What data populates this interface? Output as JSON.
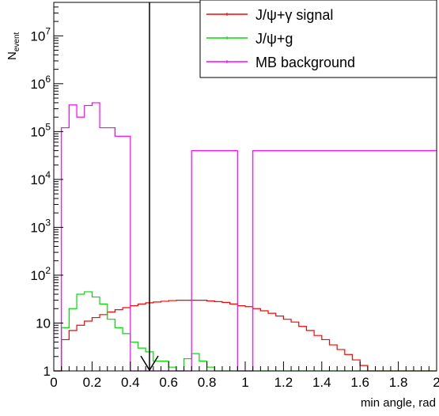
{
  "chart_data": {
    "type": "histogram",
    "xlabel": "min angle, rad",
    "ylabel": "N",
    "ylabel_sub": "event",
    "xlim": [
      0,
      2
    ],
    "ylim": [
      1,
      50000000
    ],
    "yscale": "log",
    "bin_width": 0.04,
    "x_ticks": [
      {
        "value": 0,
        "label": "0"
      },
      {
        "value": 0.2,
        "label": "0.2"
      },
      {
        "value": 0.4,
        "label": "0.4"
      },
      {
        "value": 0.6,
        "label": "0.6"
      },
      {
        "value": 0.8,
        "label": "0.8"
      },
      {
        "value": 1.0,
        "label": "1"
      },
      {
        "value": 1.2,
        "label": "1.2"
      },
      {
        "value": 1.4,
        "label": "1.4"
      },
      {
        "value": 1.6,
        "label": "1.6"
      },
      {
        "value": 1.8,
        "label": "1.8"
      },
      {
        "value": 2.0,
        "label": "2"
      }
    ],
    "y_ticks": [
      {
        "value": 1,
        "base": "1",
        "exp": ""
      },
      {
        "value": 10,
        "base": "10",
        "exp": ""
      },
      {
        "value": 100,
        "base": "10",
        "exp": "2"
      },
      {
        "value": 1000,
        "base": "10",
        "exp": "3"
      },
      {
        "value": 10000,
        "base": "10",
        "exp": "4"
      },
      {
        "value": 100000,
        "base": "10",
        "exp": "5"
      },
      {
        "value": 1000000,
        "base": "10",
        "exp": "6"
      },
      {
        "value": 10000000,
        "base": "10",
        "exp": "7"
      }
    ],
    "cut": {
      "x": 0.5
    },
    "legend_position": "top-right",
    "series": [
      {
        "name": "J/ψ+γ signal",
        "color": "#ff0000",
        "values": [
          1,
          4.5,
          7,
          9,
          11,
          13,
          15,
          17,
          19,
          21,
          23,
          25,
          26.5,
          27.5,
          28.5,
          29.5,
          30,
          30,
          30,
          30,
          29,
          28,
          27,
          25,
          23,
          22,
          20,
          18,
          16,
          14,
          12,
          10.5,
          8.5,
          7,
          5.5,
          4.5,
          3.5,
          2.8,
          2.2,
          1.7,
          1.3,
          1,
          1,
          1,
          1,
          1,
          1,
          1,
          1,
          1
        ]
      },
      {
        "name": "J/ψ+g",
        "color": "#00dd00",
        "values": [
          1,
          8,
          20,
          40,
          45,
          35,
          25,
          12,
          8,
          6,
          4,
          3,
          2.5,
          1.6,
          1.6,
          1.2,
          1,
          1.8,
          2.3,
          1.6,
          1.2,
          1,
          1,
          1,
          1,
          1,
          1,
          1,
          1,
          1,
          1,
          1,
          1,
          1,
          1,
          1,
          1,
          1,
          1,
          1,
          1,
          1,
          1,
          1,
          1,
          1,
          1,
          1,
          1,
          1
        ]
      },
      {
        "name": "MB background",
        "color": "#ff00ff",
        "values": [
          1,
          120000,
          360000,
          200000,
          350000,
          400000,
          120000,
          120000,
          80000,
          80000,
          1,
          1,
          1,
          1,
          1,
          1,
          1,
          1,
          40000,
          40000,
          40000,
          40000,
          40000,
          40000,
          1,
          1,
          40000,
          40000,
          40000,
          40000,
          40000,
          40000,
          40000,
          40000,
          40000,
          40000,
          40000,
          40000,
          40000,
          40000,
          40000,
          40000,
          40000,
          40000,
          40000,
          40000,
          40000,
          40000,
          40000,
          40000
        ]
      }
    ]
  }
}
